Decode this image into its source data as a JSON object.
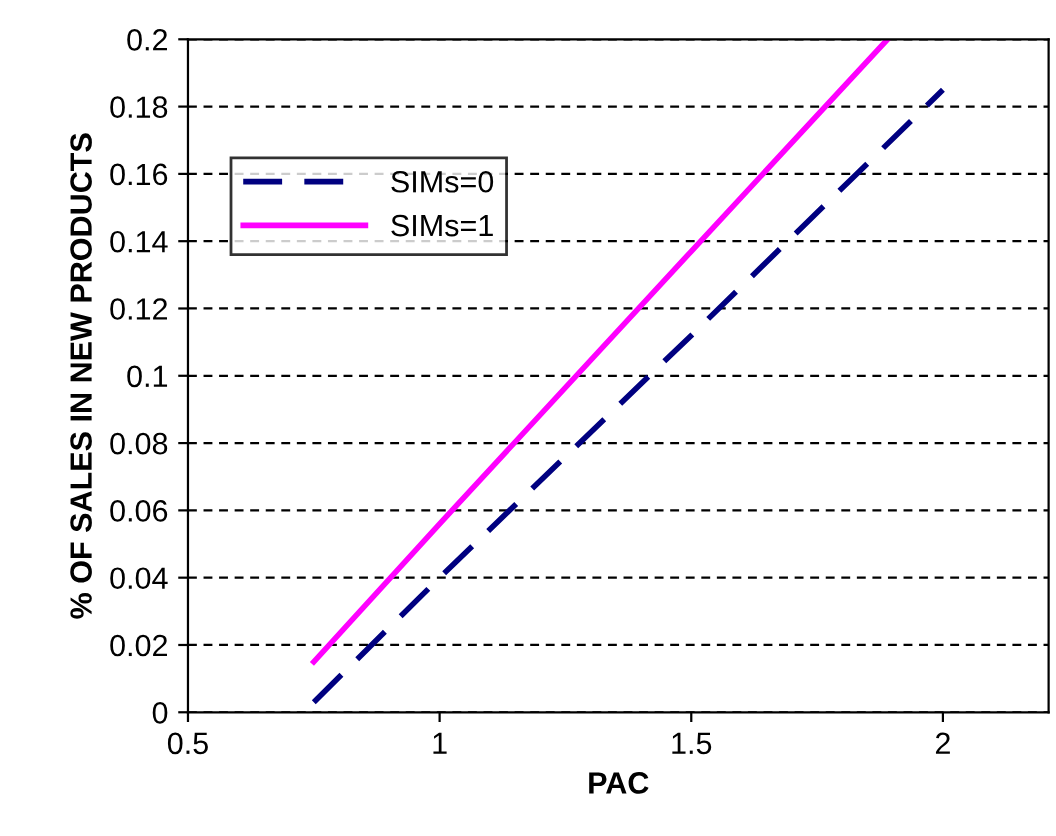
{
  "chart_data": {
    "type": "line",
    "xlabel": "PAC",
    "ylabel": "% OF SALES IN NEW PRODUCTS",
    "xlim": [
      0.5,
      2.21
    ],
    "xticks": [
      0.5,
      1,
      1.5,
      2
    ],
    "ylim": [
      0,
      0.2
    ],
    "yticks": [
      0,
      0.02,
      0.04,
      0.06,
      0.08,
      0.1,
      0.12,
      0.14,
      0.16,
      0.18,
      0.2
    ],
    "grid": "y",
    "legend": "top left",
    "series": [
      {
        "name": "SIMs=0",
        "color": "#000080",
        "line_style": "dashed",
        "x": [
          0.75,
          1.0,
          1.5,
          2.0
        ],
        "values": [
          0.003,
          0.04,
          0.112,
          0.185
        ]
      },
      {
        "name": "SIMs=1",
        "color": "#ff00ff",
        "line_style": "solid",
        "x": [
          0.75,
          1.0,
          1.5,
          1.89
        ],
        "values": [
          0.015,
          0.056,
          0.137,
          0.2
        ]
      }
    ]
  }
}
